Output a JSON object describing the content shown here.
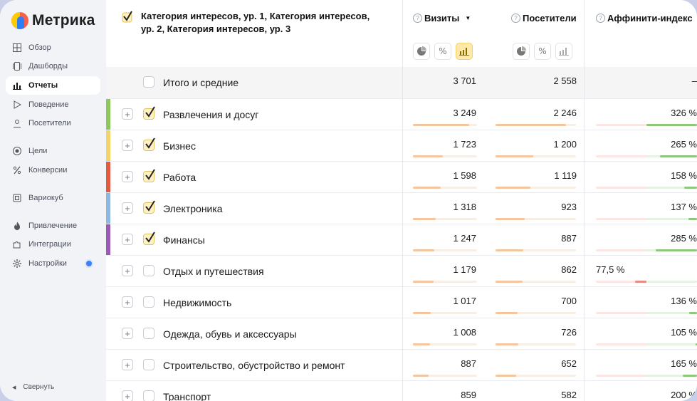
{
  "logo": {
    "text": "Метрика"
  },
  "sidebar": {
    "items": [
      {
        "label": "Обзор",
        "icon": "grid-icon"
      },
      {
        "label": "Дашборды",
        "icon": "dashboards-icon"
      },
      {
        "label": "Отчеты",
        "icon": "bar-chart-icon",
        "active": true
      },
      {
        "label": "Поведение",
        "icon": "play-icon"
      },
      {
        "label": "Посетители",
        "icon": "person-icon"
      },
      {
        "label": "Цели",
        "icon": "target-icon"
      },
      {
        "label": "Конверсии",
        "icon": "percent-icon"
      },
      {
        "label": "Вариокуб",
        "icon": "cube-icon"
      },
      {
        "label": "Привлечение",
        "icon": "flame-icon"
      },
      {
        "label": "Интеграции",
        "icon": "puzzle-icon"
      },
      {
        "label": "Настройки",
        "icon": "gear-icon"
      }
    ],
    "collapse_label": "Свернуть"
  },
  "table": {
    "dimension_header": "Категория интересов, ур. 1, Категория интересов, ур. 2, Категория интересов, ур. 3",
    "columns": {
      "visits": "Визиты",
      "visitors": "Посетители",
      "affinity": "Аффинити-индекс"
    },
    "total": {
      "name": "Итого и средние",
      "visits": "3 701",
      "visitors": "2 558",
      "affinity": "–"
    },
    "rows": [
      {
        "name": "Развлечения и досуг",
        "checked": true,
        "color": "#8dc85a",
        "visits": "3 249",
        "visitors": "2 246",
        "affinity": "326 %",
        "visits_share": 0.878,
        "visitors_share": 0.878,
        "affinity_value": 3.26
      },
      {
        "name": "Бизнес",
        "checked": true,
        "color": "#f5d36b",
        "visits": "1 723",
        "visitors": "1 200",
        "affinity": "265 %",
        "visits_share": 0.466,
        "visitors_share": 0.469,
        "affinity_value": 2.65
      },
      {
        "name": "Работа",
        "checked": true,
        "color": "#e55a3f",
        "visits": "1 598",
        "visitors": "1 119",
        "affinity": "158 %",
        "visits_share": 0.432,
        "visitors_share": 0.437,
        "affinity_value": 1.58
      },
      {
        "name": "Электроника",
        "checked": true,
        "color": "#8fb8e0",
        "visits": "1 318",
        "visitors": "923",
        "affinity": "137 %",
        "visits_share": 0.356,
        "visitors_share": 0.361,
        "affinity_value": 1.37
      },
      {
        "name": "Финансы",
        "checked": true,
        "color": "#9b59b6",
        "visits": "1 247",
        "visitors": "887",
        "affinity": "285 %",
        "visits_share": 0.337,
        "visitors_share": 0.347,
        "affinity_value": 2.85
      },
      {
        "name": "Отдых и путешествия",
        "checked": false,
        "color": "",
        "visits": "1 179",
        "visitors": "862",
        "affinity": "77,5 %",
        "visits_share": 0.319,
        "visitors_share": 0.337,
        "affinity_value": 0.775
      },
      {
        "name": "Недвижимость",
        "checked": false,
        "color": "",
        "visits": "1 017",
        "visitors": "700",
        "affinity": "136 %",
        "visits_share": 0.275,
        "visitors_share": 0.274,
        "affinity_value": 1.36
      },
      {
        "name": "Одежда, обувь и аксессуары",
        "checked": false,
        "color": "",
        "visits": "1 008",
        "visitors": "726",
        "affinity": "105 %",
        "visits_share": 0.272,
        "visitors_share": 0.284,
        "affinity_value": 1.05
      },
      {
        "name": "Строительство, обустройство и ремонт",
        "checked": false,
        "color": "",
        "visits": "887",
        "visitors": "652",
        "affinity": "165 %",
        "visits_share": 0.24,
        "visitors_share": 0.255,
        "affinity_value": 1.65
      },
      {
        "name": "Транспорт",
        "checked": false,
        "color": "",
        "visits": "859",
        "visitors": "582",
        "affinity": "200 %",
        "visits_share": 0.232,
        "visitors_share": 0.228,
        "affinity_value": 2.0
      }
    ]
  }
}
